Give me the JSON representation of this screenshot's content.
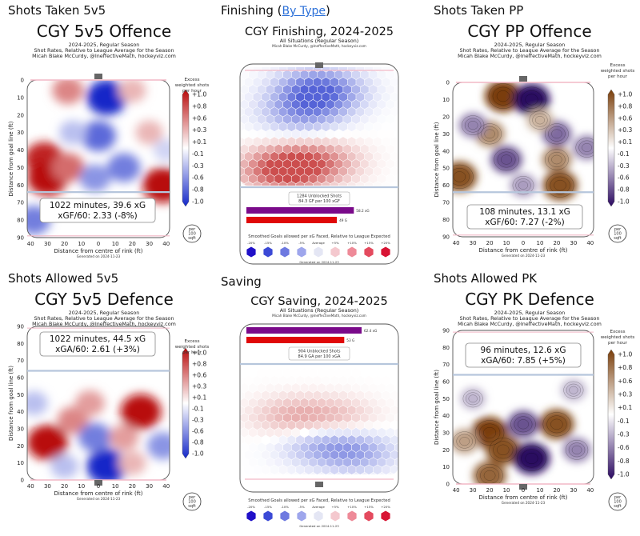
{
  "colors": {
    "red": "#c41414",
    "blue": "#2338c8",
    "orange": "#8a4a10",
    "purple": "#3a0d6e",
    "rink": "#555555",
    "goal_line": "#f2b8c6",
    "blue_line": "#b6c6dc",
    "bar_xg": "#7a0a8a",
    "bar_g": "#e00808"
  },
  "panels": [
    {
      "id": "p1",
      "section": "Shots Taken 5v5",
      "title": "CGY 5v5 Offence",
      "sub1": "2024-2025, Regular Season",
      "sub2": "Shot Rates, Relative to League Average for the Season",
      "sub3": "Micah Blake McCurdy, @IneffectiveMath, hockeyviz.com",
      "cb_title": [
        "Excess",
        "weighted shots",
        "per hour"
      ],
      "stat1": "1022 minutes, 39.6 xG",
      "stat2": "xGF/60: 2.33 (-8%)",
      "per_badge": [
        "per",
        "100",
        "sqft"
      ],
      "xlabel": "Distance from centre of rink (ft)",
      "ylabel": "Distance from goal line (ft)",
      "generated": "Generated on 2024-11-23"
    },
    {
      "id": "p2",
      "section": "Finishing",
      "section_link": "By Type",
      "title": "CGY Finishing, 2024-2025",
      "sub1": "All Situations (Regular Season)",
      "sub2": "Micah Blake McCurdy, @IneffectiveMath, hockeyviz.com",
      "unblocked1": "1284 Unblocked Shots",
      "unblocked2": "84.3 GF per 100 xGF",
      "bar1_label": "58.2 xG",
      "bar2_label": "49 G",
      "legend_title": "Smoothed Goals allowed per xG Faced, Relative to League Expected",
      "legend_ticks": [
        "-20%",
        "-15%",
        "-10%",
        "-5%",
        "Average",
        "+5%",
        "+10%",
        "+15%",
        "+20%"
      ],
      "generated": "Generated on 2024-11-23"
    },
    {
      "id": "p3",
      "section": "Shots Taken PP",
      "title": "CGY PP Offence",
      "sub1": "2024-2025, Regular Season",
      "sub2": "Shot Rates, Relative to League Average for the Season",
      "sub3": "Micah Blake McCurdy, @IneffectiveMath, hockeyviz.com",
      "cb_title": [
        "Excess",
        "weighted shots",
        "per hour"
      ],
      "stat1": "108 minutes, 13.1 xG",
      "stat2": "xGF/60: 7.27 (-2%)",
      "per_badge": [
        "per",
        "100",
        "sqft"
      ],
      "xlabel": "Distance from centre of rink (ft)",
      "ylabel": "Distance from goal line (ft)",
      "generated": "Generated on 2024-11-23"
    },
    {
      "id": "p4",
      "section": "Shots Allowed 5v5",
      "title": "CGY 5v5 Defence",
      "sub1": "2024-2025, Regular Season",
      "sub2": "Shot Rates, Relative to League Average for the Season",
      "sub3": "Micah Blake McCurdy, @IneffectiveMath, hockeyviz.com",
      "cb_title": [
        "Excess",
        "weighted shots",
        "per hour"
      ],
      "stat1": "1022 minutes, 44.5 xG",
      "stat2": "xGA/60: 2.61 (+3%)",
      "per_badge": [
        "per",
        "100",
        "sqft"
      ],
      "xlabel": "Distance from centre of rink (ft)",
      "ylabel": "Distance from goal line (ft)",
      "generated": "Generated on 2024-11-23"
    },
    {
      "id": "p5",
      "section": "Saving",
      "title": "CGY Saving, 2024-2025",
      "sub1": "All Situations (Regular Season)",
      "sub2": "Micah Blake McCurdy, @IneffectiveMath, hockeyviz.com",
      "unblocked1": "904 Unblocked Shots",
      "unblocked2": "84.9 GA per 100 xGA",
      "bar1_label": "62.4 xG",
      "bar2_label": "53 G",
      "legend_title": "Smoothed Goals allowed per xG Faced, Relative to League Expected",
      "legend_ticks": [
        "-20%",
        "-15%",
        "-10%",
        "-5%",
        "Average",
        "+5%",
        "+10%",
        "+15%",
        "+20%"
      ],
      "generated": "Generated on 2024-11-23"
    },
    {
      "id": "p6",
      "section": "Shots Allowed PK",
      "title": "CGY PK Defence",
      "sub1": "2024-2025, Regular Season",
      "sub2": "Shot Rates, Relative to League Average for the Season",
      "sub3": "Micah Blake McCurdy, @IneffectiveMath, hockeyviz.com",
      "cb_title": [
        "Excess",
        "weighted shots",
        "per hour"
      ],
      "stat1": "96 minutes, 12.6 xG",
      "stat2": "xGA/60: 7.85 (+5%)",
      "per_badge": [
        "per",
        "100",
        "sqft"
      ],
      "xlabel": "Distance from centre of rink (ft)",
      "ylabel": "Distance from goal line (ft)",
      "generated": "Generated on 2024-11-23"
    }
  ],
  "chart_data": [
    {
      "panel": "p1",
      "type": "heatmap",
      "x_ticks": [
        40,
        30,
        20,
        10,
        0,
        10,
        20,
        30,
        40
      ],
      "y_ticks": [
        0,
        10,
        20,
        30,
        40,
        50,
        60,
        70,
        80,
        90
      ],
      "xlim": [
        -42,
        42
      ],
      "ylim": [
        0,
        90
      ],
      "y_inverted": true,
      "colorbar_ticks": [
        "+1.0",
        "+0.8",
        "+0.6",
        "+0.3",
        "+0.1",
        "-0.1",
        "-0.3",
        "-0.6",
        "-0.8",
        "-1.0"
      ],
      "colormap": "red-white-blue",
      "blobs": [
        {
          "x": -32,
          "y": 45,
          "v": 0.9
        },
        {
          "x": -30,
          "y": 56,
          "v": 1.0
        },
        {
          "x": -18,
          "y": 50,
          "v": 0.6
        },
        {
          "x": 38,
          "y": 60,
          "v": 1.0
        },
        {
          "x": 5,
          "y": 10,
          "v": -1.0
        },
        {
          "x": -18,
          "y": 6,
          "v": 0.5
        },
        {
          "x": 20,
          "y": 6,
          "v": 0.3
        },
        {
          "x": 0,
          "y": 32,
          "v": -0.7
        },
        {
          "x": 15,
          "y": 50,
          "v": -0.6
        },
        {
          "x": 30,
          "y": 30,
          "v": 0.3
        },
        {
          "x": -2,
          "y": 56,
          "v": -0.5
        },
        {
          "x": -38,
          "y": 80,
          "v": -0.6
        },
        {
          "x": -15,
          "y": 30,
          "v": -0.3
        },
        {
          "x": 40,
          "y": 40,
          "v": -0.2
        }
      ]
    },
    {
      "panel": "p2",
      "type": "heatmap",
      "grid": "hex",
      "colormap": "red-white-blue",
      "legend_colors": [
        "#2010c8",
        "#3b49d6",
        "#6e79e0",
        "#9ea6ec",
        "#e4e6f4",
        "#f4c8ce",
        "#ee8a98",
        "#e44a5e",
        "#d81434"
      ],
      "regions": [
        {
          "x": 0,
          "y": 15,
          "v": -1.0
        },
        {
          "x": -10,
          "y": 30,
          "v": -0.5
        },
        {
          "x": 0,
          "y": 60,
          "v": 0.6
        },
        {
          "x": -20,
          "y": 65,
          "v": 1.0
        }
      ],
      "bars": [
        {
          "label": "58.2 xG",
          "value": 58.2
        },
        {
          "label": "49 G",
          "value": 49
        }
      ]
    },
    {
      "panel": "p3",
      "type": "heatmap",
      "x_ticks": [
        40,
        30,
        20,
        10,
        0,
        10,
        20,
        30,
        40
      ],
      "y_ticks": [
        0,
        10,
        20,
        30,
        40,
        50,
        60,
        70,
        80,
        90
      ],
      "xlim": [
        -42,
        42
      ],
      "ylim": [
        0,
        90
      ],
      "y_inverted": true,
      "colorbar_ticks": [
        "+1.0",
        "+0.8",
        "+0.6",
        "+0.3",
        "+0.1",
        "-0.1",
        "-0.3",
        "-0.6",
        "-0.8",
        "-1.0"
      ],
      "colormap": "orange-white-purple",
      "blobs": [
        {
          "x": -12,
          "y": 8,
          "v": 1.0
        },
        {
          "x": 5,
          "y": 10,
          "v": -1.0
        },
        {
          "x": -20,
          "y": 30,
          "v": 0.6
        },
        {
          "x": 20,
          "y": 30,
          "v": -0.6
        },
        {
          "x": -38,
          "y": 55,
          "v": 0.9
        },
        {
          "x": 20,
          "y": 45,
          "v": 0.6
        },
        {
          "x": 22,
          "y": 60,
          "v": 0.9
        },
        {
          "x": -10,
          "y": 45,
          "v": -0.7
        },
        {
          "x": -30,
          "y": 25,
          "v": -0.5
        },
        {
          "x": 38,
          "y": 38,
          "v": -0.5
        },
        {
          "x": 0,
          "y": 60,
          "v": -0.4
        },
        {
          "x": 10,
          "y": 22,
          "v": 0.4
        }
      ]
    },
    {
      "panel": "p4",
      "type": "heatmap",
      "x_ticks": [
        40,
        30,
        20,
        10,
        0,
        10,
        20,
        30,
        40
      ],
      "y_ticks": [
        90,
        80,
        70,
        60,
        50,
        40,
        30,
        20,
        10,
        0
      ],
      "xlim": [
        -42,
        42
      ],
      "ylim": [
        0,
        90
      ],
      "colorbar_ticks": [
        "+1.0",
        "+0.8",
        "+0.6",
        "+0.3",
        "+0.1",
        "-0.1",
        "-0.3",
        "-0.6",
        "-0.8",
        "-1.0"
      ],
      "colormap": "red-white-blue",
      "blobs": [
        {
          "x": -30,
          "y": 22,
          "v": 1.0
        },
        {
          "x": -15,
          "y": 35,
          "v": 0.5
        },
        {
          "x": 25,
          "y": 40,
          "v": 1.0
        },
        {
          "x": 5,
          "y": 8,
          "v": -1.0
        },
        {
          "x": -2,
          "y": 25,
          "v": -0.6
        },
        {
          "x": -5,
          "y": 45,
          "v": 0.4
        },
        {
          "x": 38,
          "y": 20,
          "v": -0.5
        },
        {
          "x": -38,
          "y": 45,
          "v": -0.3
        },
        {
          "x": 15,
          "y": 25,
          "v": 0.4
        },
        {
          "x": -20,
          "y": 8,
          "v": -0.3
        },
        {
          "x": 20,
          "y": 10,
          "v": 0.3
        }
      ]
    },
    {
      "panel": "p5",
      "type": "heatmap",
      "grid": "hex",
      "colormap": "red-white-blue",
      "legend_colors": [
        "#2010c8",
        "#3b49d6",
        "#6e79e0",
        "#9ea6ec",
        "#e4e6f4",
        "#f4c8ce",
        "#ee8a98",
        "#e44a5e",
        "#d81434"
      ],
      "regions": [
        {
          "x": 0,
          "y": 20,
          "v": -0.4
        },
        {
          "x": -15,
          "y": 40,
          "v": 0.4
        },
        {
          "x": 10,
          "y": 40,
          "v": 0.3
        },
        {
          "x": 20,
          "y": 15,
          "v": -0.5
        }
      ],
      "bars": [
        {
          "label": "62.4 xG",
          "value": 62.4
        },
        {
          "label": "53 G",
          "value": 53
        }
      ]
    },
    {
      "panel": "p6",
      "type": "heatmap",
      "x_ticks": [
        40,
        30,
        20,
        10,
        0,
        10,
        20,
        30,
        40
      ],
      "y_ticks": [
        90,
        80,
        70,
        60,
        50,
        40,
        30,
        20,
        10,
        0
      ],
      "xlim": [
        -42,
        42
      ],
      "ylim": [
        0,
        90
      ],
      "colorbar_ticks": [
        "+1.0",
        "+0.8",
        "+0.6",
        "+0.3",
        "+0.1",
        "-0.1",
        "-0.3",
        "-0.6",
        "-0.8",
        "-1.0"
      ],
      "colormap": "orange-white-purple",
      "blobs": [
        {
          "x": -20,
          "y": 30,
          "v": 1.0
        },
        {
          "x": -12,
          "y": 20,
          "v": 0.9
        },
        {
          "x": 20,
          "y": 35,
          "v": 0.9
        },
        {
          "x": 5,
          "y": 15,
          "v": -1.0
        },
        {
          "x": 0,
          "y": 35,
          "v": -0.7
        },
        {
          "x": -30,
          "y": 50,
          "v": -0.3
        },
        {
          "x": 30,
          "y": 55,
          "v": -0.3
        },
        {
          "x": -20,
          "y": 5,
          "v": 0.8
        },
        {
          "x": 32,
          "y": 20,
          "v": -0.5
        },
        {
          "x": -35,
          "y": 25,
          "v": 0.5
        }
      ]
    }
  ]
}
